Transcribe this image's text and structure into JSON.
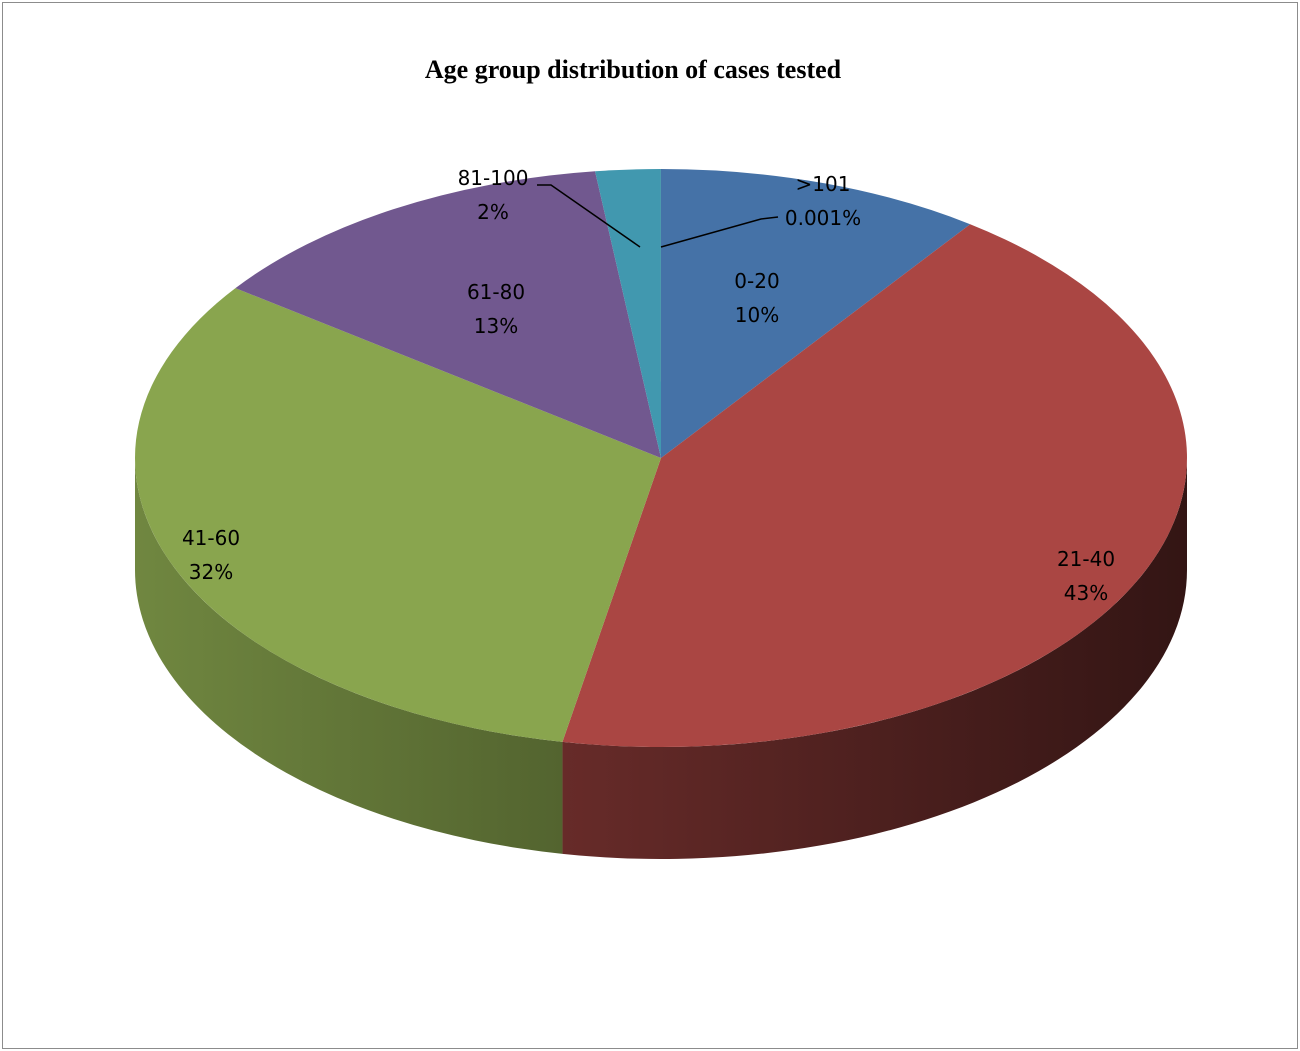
{
  "chart_data": {
    "type": "pie",
    "title": "Age group distribution of cases tested",
    "three_d": true,
    "slices": [
      {
        "category": "0-20",
        "percent_label": "10%",
        "value": 10,
        "color": "#4572A7"
      },
      {
        "category": "21-40",
        "percent_label": "43%",
        "value": 43,
        "color": "#AA4643"
      },
      {
        "category": "41-60",
        "percent_label": "32%",
        "value": 32,
        "color": "#89A54E"
      },
      {
        "category": "61-80",
        "percent_label": "13%",
        "value": 13,
        "color": "#71588F"
      },
      {
        "category": "81-100",
        "percent_label": "2%",
        "value": 2,
        "color": "#4198AF"
      },
      {
        "category": ">101",
        "percent_label": "0.001%",
        "value": 0.001,
        "color": "#DB843D"
      }
    ],
    "legend": "none",
    "data_labels": "category and percentage"
  }
}
